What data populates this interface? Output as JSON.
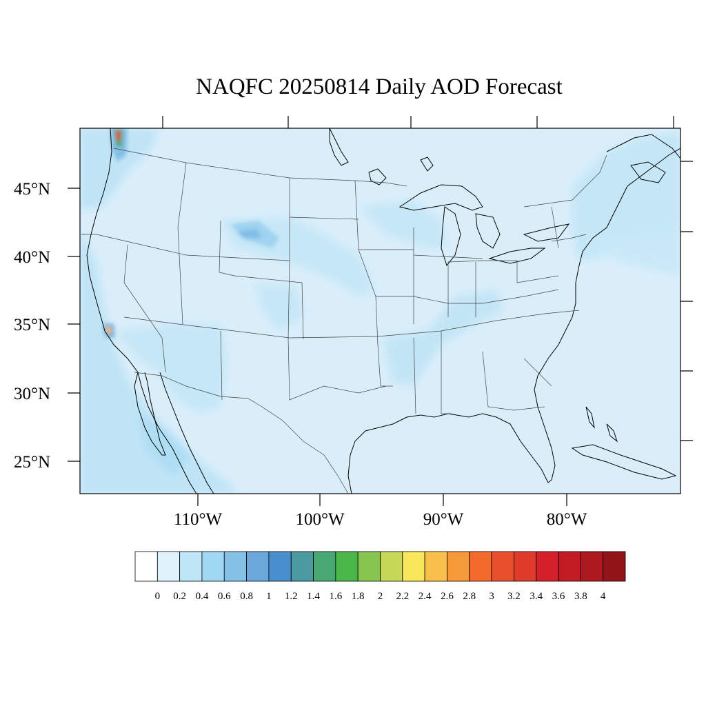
{
  "title": "NAQFC 20250814 Daily AOD Forecast",
  "map": {
    "lat_labels": [
      "45°N",
      "40°N",
      "35°N",
      "30°N",
      "25°N"
    ],
    "lon_labels": [
      "110°W",
      "100°W",
      "90°W",
      "80°W"
    ],
    "ocean_fill": "#dcf0fa",
    "land_fill": "#dff2fb",
    "coast_color": "#000000",
    "state_line_color": "#333333"
  },
  "colorbar": {
    "labels": [
      "0",
      "0.2",
      "0.4",
      "0.6",
      "0.8",
      "1",
      "1.2",
      "1.4",
      "1.6",
      "1.8",
      "2",
      "2.2",
      "2.4",
      "2.6",
      "2.8",
      "3",
      "3.2",
      "3.4",
      "3.6",
      "3.8",
      "4"
    ],
    "colors": [
      "#ffffff",
      "#e0f3fb",
      "#bfe6f7",
      "#a0d8f3",
      "#85c0e6",
      "#6aa8dc",
      "#4a8fcd",
      "#4a9aa0",
      "#47a873",
      "#4ab64a",
      "#86c650",
      "#c6d957",
      "#f8e75a",
      "#f8c04a",
      "#f59a3a",
      "#f36a2c",
      "#e94f2c",
      "#e03a2a",
      "#d52029",
      "#c11b23",
      "#ac1a20",
      "#921419"
    ]
  }
}
